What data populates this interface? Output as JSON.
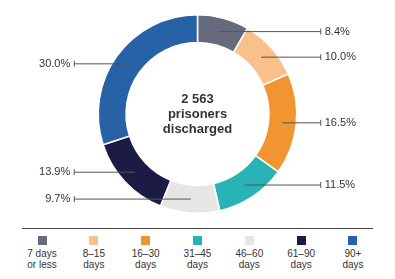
{
  "chart_data": {
    "type": "doughnut",
    "center_text": [
      "2 563",
      "prisoners",
      "discharged"
    ],
    "categories": [
      "7 days or less",
      "8–15 days",
      "16–30 days",
      "31–45 days",
      "46–60 days",
      "61–90 days",
      "90+ days"
    ],
    "values": [
      8.4,
      10.0,
      16.5,
      11.5,
      9.7,
      13.9,
      30.0
    ],
    "value_labels": [
      "8.4%",
      "10.0%",
      "16.5%",
      "11.5%",
      "9.7%",
      "13.9%",
      "30.0%"
    ],
    "colors": [
      "#656a7c",
      "#f9c08b",
      "#f0952f",
      "#2ab3b6",
      "#e6e6e6",
      "#1c1b45",
      "#2761a6"
    ],
    "data_labels": true,
    "legend": "bottom"
  }
}
